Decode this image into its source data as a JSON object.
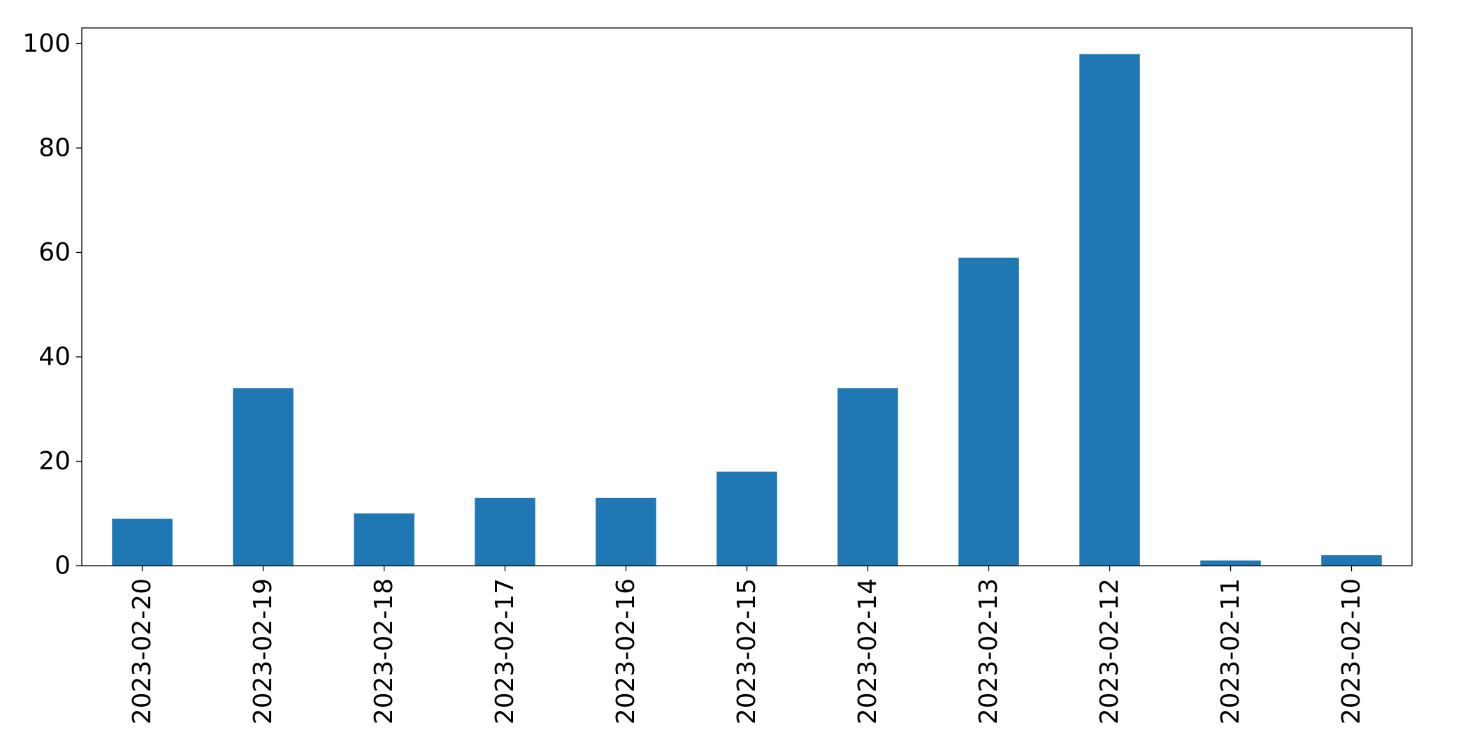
{
  "chart_data": {
    "type": "bar",
    "title": "",
    "xlabel": "",
    "ylabel": "",
    "categories": [
      "2023-02-20",
      "2023-02-19",
      "2023-02-18",
      "2023-02-17",
      "2023-02-16",
      "2023-02-15",
      "2023-02-14",
      "2023-02-13",
      "2023-02-12",
      "2023-02-11",
      "2023-02-10"
    ],
    "values": [
      9,
      34,
      10,
      13,
      13,
      18,
      34,
      59,
      98,
      1,
      2
    ],
    "ylim": [
      0,
      103
    ],
    "yticks": [
      0,
      20,
      40,
      60,
      80,
      100
    ],
    "grid": false,
    "legend": "none",
    "x_tick_rotation": "vertical",
    "bar_color": "#1f77b4"
  }
}
